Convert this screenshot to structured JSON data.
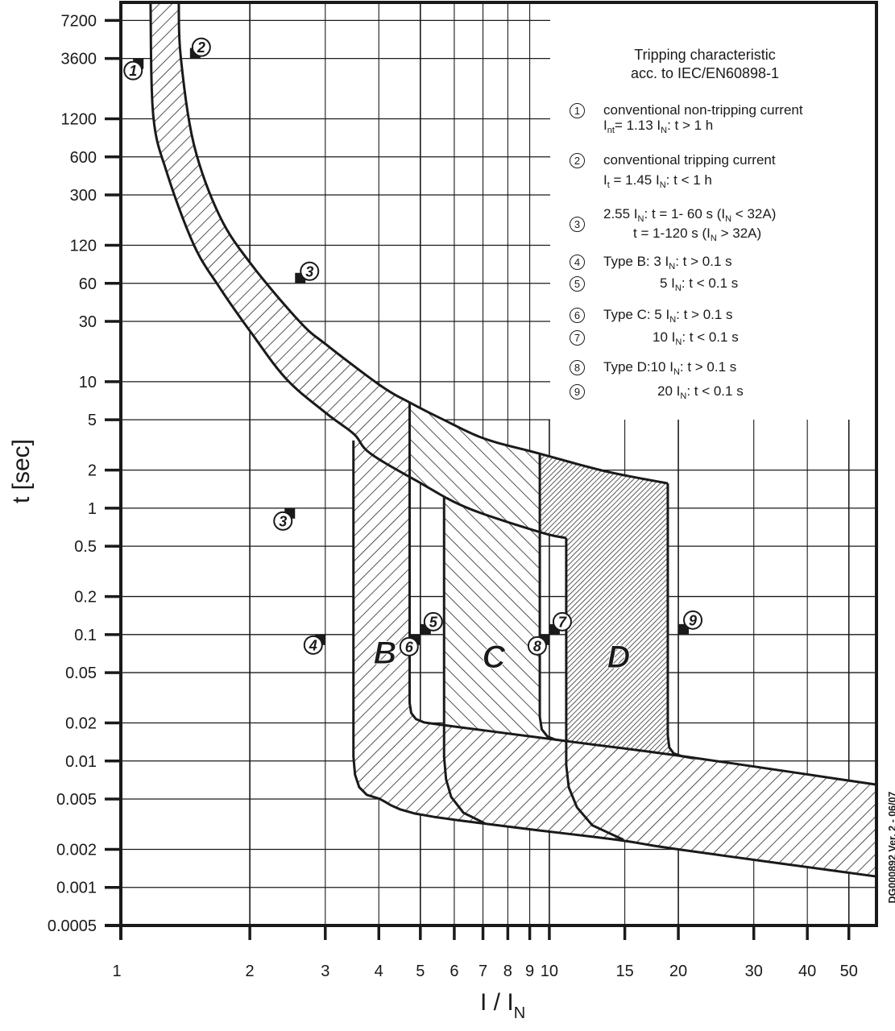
{
  "chart_data": {
    "type": "area",
    "title": "Tripping characteristic",
    "subtitle": "acc. to IEC/EN60898-1",
    "xlabel": {
      "main": "I / I",
      "sub": "N"
    },
    "ylabel": "t [sec]",
    "x_scale": "log",
    "y_scale": "log",
    "xlim": [
      1,
      58
    ],
    "ylim": [
      0.0005,
      10000
    ],
    "grid": true,
    "x_ticks": [
      1,
      2,
      3,
      4,
      5,
      6,
      7,
      8,
      9,
      10,
      15,
      20,
      30,
      40,
      50
    ],
    "x_tick_labels": [
      "1",
      "2",
      "3",
      "4",
      "5",
      "6",
      "7",
      "8",
      "9",
      "10",
      "15",
      "20",
      "30",
      "40",
      "50"
    ],
    "y_ticks": [
      7200,
      3600,
      1200,
      600,
      300,
      120,
      60,
      30,
      10,
      5,
      2,
      1,
      0.5,
      0.2,
      0.1,
      0.05,
      0.02,
      0.01,
      0.005,
      0.002,
      0.001,
      0.0005
    ],
    "y_tick_labels": [
      "7200",
      "3600",
      "1200",
      "600",
      "300",
      "120",
      "60",
      "30",
      "10",
      "5",
      "2",
      "1",
      "0.5",
      "0.2",
      "0.1",
      "0.05",
      "0.02",
      "0.01",
      "0.005",
      "0.002",
      "0.001",
      "0.0005"
    ],
    "curves": {
      "thermal_lower": [
        [
          1.173,
          10000
        ],
        [
          1.19,
          1283
        ],
        [
          1.28,
          453
        ],
        [
          1.48,
          121
        ],
        [
          1.7,
          55.6
        ],
        [
          2.02,
          24.1
        ],
        [
          2.44,
          10.4
        ],
        [
          3.03,
          5.56
        ],
        [
          3.5,
          3.85
        ],
        [
          3.82,
          2.71
        ],
        [
          4.94,
          1.62
        ],
        [
          6.41,
          1.01
        ],
        [
          9.45,
          0.65
        ],
        [
          10.95,
          0.58
        ]
      ],
      "thermal_upper": [
        [
          1.365,
          10000
        ],
        [
          1.38,
          3690
        ],
        [
          1.48,
          757
        ],
        [
          1.7,
          205
        ],
        [
          2.02,
          84
        ],
        [
          2.62,
          29.6
        ],
        [
          3.03,
          19.4
        ],
        [
          4.04,
          9.3
        ],
        [
          4.74,
          6.8
        ],
        [
          5.7,
          4.95
        ],
        [
          7.08,
          3.53
        ],
        [
          9.45,
          2.71
        ],
        [
          13.5,
          1.96
        ],
        [
          18.9,
          1.57
        ]
      ],
      "magnetic_lower": [
        [
          4.02,
          0.00502
        ],
        [
          4.84,
          0.00385
        ],
        [
          8.2,
          0.003
        ],
        [
          14.4,
          0.00238
        ],
        [
          20,
          0.002
        ],
        [
          58,
          0.00122
        ]
      ],
      "magnetic_upper": [
        [
          5.42,
          0.0196
        ],
        [
          10.9,
          0.0144
        ],
        [
          20.9,
          0.0108
        ],
        [
          58,
          0.0065
        ]
      ],
      "B_left": [
        [
          3.49,
          3.43
        ],
        [
          3.49,
          0.0108
        ],
        [
          3.52,
          0.0078
        ],
        [
          3.6,
          0.0062
        ],
        [
          3.75,
          0.0054
        ],
        [
          4.02,
          0.00502
        ]
      ],
      "B_right": [
        [
          4.72,
          6.8
        ],
        [
          4.72,
          0.0288
        ],
        [
          4.76,
          0.024
        ],
        [
          4.88,
          0.0215
        ],
        [
          5.1,
          0.0202
        ],
        [
          5.42,
          0.0196
        ]
      ],
      "C_left": [
        [
          5.68,
          1.21
        ],
        [
          5.68,
          0.0108
        ],
        [
          5.74,
          0.0072
        ],
        [
          5.9,
          0.0052
        ],
        [
          6.3,
          0.0039
        ],
        [
          7.05,
          0.00323
        ]
      ],
      "C_right": [
        [
          9.5,
          2.71
        ],
        [
          9.5,
          0.0224
        ],
        [
          9.6,
          0.0178
        ],
        [
          9.9,
          0.0156
        ],
        [
          10.3,
          0.0148
        ],
        [
          10.9,
          0.0144
        ]
      ],
      "D_left": [
        [
          10.95,
          0.58
        ],
        [
          10.95,
          0.0093
        ],
        [
          11.1,
          0.0062
        ],
        [
          11.6,
          0.0043
        ],
        [
          12.6,
          0.0031
        ],
        [
          14.9,
          0.00238
        ]
      ],
      "D_right": [
        [
          18.9,
          1.57
        ],
        [
          18.9,
          0.016
        ],
        [
          19.05,
          0.0128
        ],
        [
          19.5,
          0.0115
        ],
        [
          20.4,
          0.0109
        ],
        [
          21.7,
          0.0105
        ]
      ]
    },
    "regions": [
      {
        "label": "B",
        "i_range": [
          3,
          5
        ]
      },
      {
        "label": "C",
        "i_range": [
          5,
          10
        ]
      },
      {
        "label": "D",
        "i_range": [
          10,
          20
        ]
      }
    ],
    "markers": [
      {
        "num": "1",
        "x": 1.13,
        "t": 3600
      },
      {
        "num": "2",
        "x": 1.45,
        "t": 3600
      },
      {
        "num": "3",
        "x": 2.55,
        "t": 60
      },
      {
        "num": "3",
        "x": 2.55,
        "t": 1
      },
      {
        "num": "4",
        "x": 3,
        "t": 0.1
      },
      {
        "num": "5",
        "x": 5,
        "t": 0.1
      },
      {
        "num": "6",
        "x": 5,
        "t": 0.1
      },
      {
        "num": "7",
        "x": 10,
        "t": 0.1
      },
      {
        "num": "8",
        "x": 10,
        "t": 0.1
      },
      {
        "num": "9",
        "x": 20,
        "t": 0.1
      }
    ],
    "legend": {
      "placement": "top-right",
      "items": [
        {
          "num": "1",
          "lines": [
            "conventional non-tripping current",
            "I_{nt}= 1.13 I_{N}: t > 1 h"
          ]
        },
        {
          "num": "2",
          "lines": [
            "conventional tripping current",
            "I_{t} = 1.45 I_{N}: t < 1 h"
          ]
        },
        {
          "num": "3",
          "lines": [
            "2.55 I_{N}: t = 1- 60 s (I_{N} < 32A)",
            "t = 1-120 s (I_{N} > 32A)"
          ]
        },
        {
          "num": "4",
          "lines": [
            "Type B: 3 I_{N}: t > 0.1 s"
          ]
        },
        {
          "num": "5",
          "lines": [
            "5 I_{N}: t < 0.1 s"
          ]
        },
        {
          "num": "6",
          "lines": [
            "Type C: 5 I_{N}: t > 0.1 s"
          ]
        },
        {
          "num": "7",
          "lines": [
            "10 I_{N}: t < 0.1 s"
          ]
        },
        {
          "num": "8",
          "lines": [
            "Type D:10 I_{N}: t > 0.1 s"
          ]
        },
        {
          "num": "9",
          "lines": [
            "20 I_{N}: t < 0.1 s"
          ]
        }
      ]
    },
    "colors": {
      "ink": "#1a1a1a",
      "background": "#ffffff"
    }
  },
  "footnote": "DG000892 Ver. 2 - 06/07"
}
